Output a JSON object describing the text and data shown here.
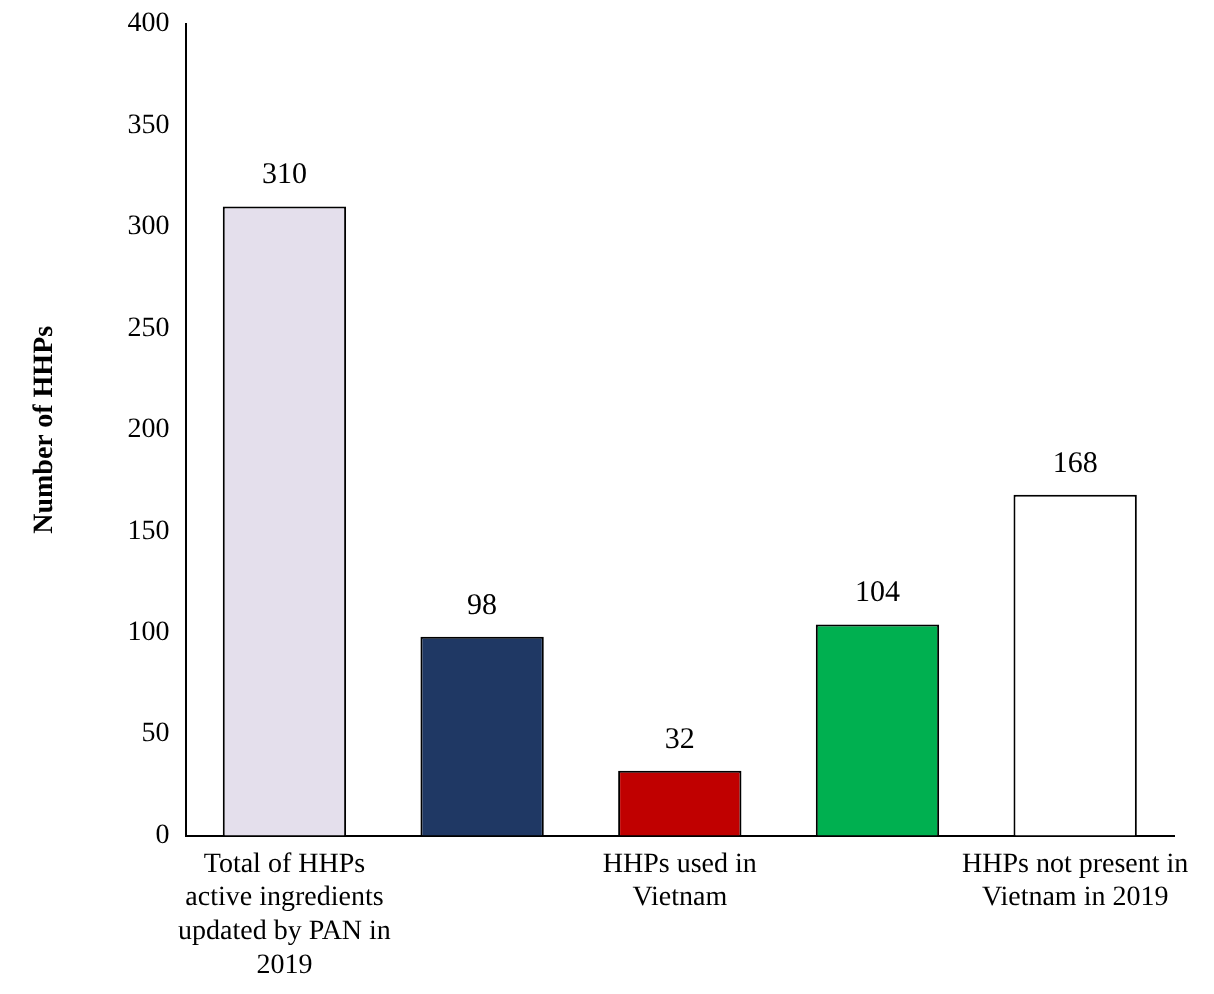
{
  "chart_data": {
    "type": "bar",
    "ylabel": "Number of HHPs",
    "categories": [
      "Total of HHPs active ingredients updated by PAN in 2019",
      null,
      "HHPs used in Vietnam",
      null,
      "HHPs not present in Vietnam in 2019"
    ],
    "values": [
      310,
      98,
      32,
      104,
      168
    ],
    "colors": [
      "#e4dfec",
      "#1f3864",
      "#c00000",
      "#00b050",
      "#ffffff"
    ],
    "ylim": [
      0,
      400
    ],
    "yticks": [
      0,
      50,
      100,
      150,
      200,
      250,
      300,
      350,
      400
    ],
    "grid": false,
    "data_labels": true
  }
}
